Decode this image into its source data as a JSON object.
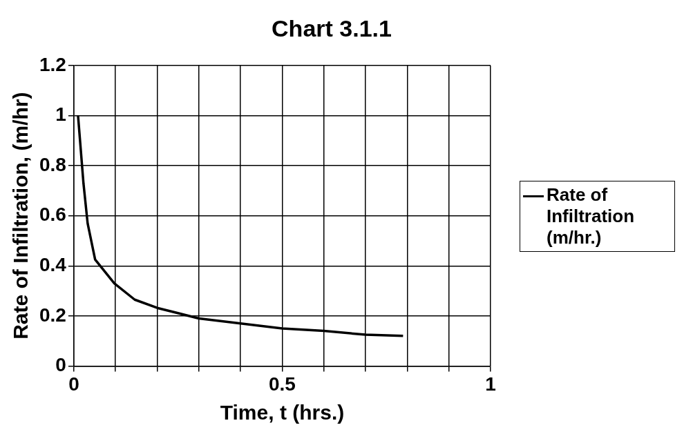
{
  "chart_data": {
    "type": "line",
    "title": "Chart 3.1.1",
    "xlabel": "Time, t (hrs.)",
    "ylabel": "Rate of Infiltration, (m/hr)",
    "series": [
      {
        "name": "Rate of Infiltration (m/hr.)",
        "color": "#000000",
        "x": [
          0.01,
          0.023,
          0.033,
          0.051,
          0.097,
          0.146,
          0.2,
          0.3,
          0.4,
          0.5,
          0.6,
          0.7,
          0.79
        ],
        "values": [
          1.0,
          0.73,
          0.57,
          0.425,
          0.33,
          0.265,
          0.232,
          0.19,
          0.17,
          0.15,
          0.14,
          0.125,
          0.12
        ]
      }
    ],
    "xlim": [
      0,
      1
    ],
    "xticks": [
      0,
      {
        "value": 0.1,
        "label": null
      },
      {
        "value": 0.2,
        "label": null
      },
      {
        "value": 0.3,
        "label": null
      },
      {
        "value": 0.4,
        "label": null
      },
      0.5,
      {
        "value": 0.6,
        "label": null
      },
      {
        "value": 0.7,
        "label": null
      },
      {
        "value": 0.8,
        "label": null
      },
      {
        "value": 0.9,
        "label": null
      },
      1
    ],
    "ylim": [
      0,
      1.2
    ],
    "yticks": [
      0,
      0.2,
      0.4,
      0.6,
      0.8,
      1,
      1.2
    ],
    "grid": true,
    "legend": "right",
    "marker": "none",
    "line_style": "solid"
  }
}
